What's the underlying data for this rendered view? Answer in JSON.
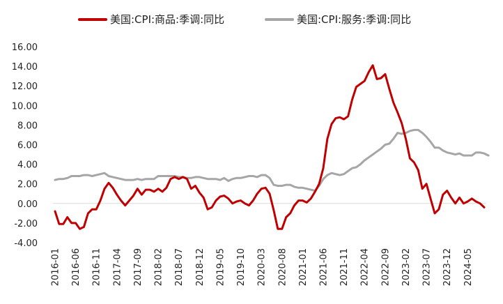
{
  "chart_data": {
    "type": "line",
    "ylim": [
      -4,
      16
    ],
    "yticks": [
      "16.00",
      "14.00",
      "12.00",
      "10.00",
      "8.00",
      "6.00",
      "4.00",
      "2.00",
      "0.00",
      "-2.00",
      "-4.00"
    ],
    "x_tick_labels": [
      "2016-01",
      "2016-06",
      "2016-11",
      "2017-04",
      "2017-09",
      "2018-02",
      "2018-07",
      "2018-12",
      "2019-05",
      "2019-10",
      "2020-03",
      "2020-08",
      "2021-01",
      "2021-06",
      "2021-11",
      "2022-04",
      "2022-09",
      "2023-02",
      "2023-07",
      "2023-12",
      "2024-05"
    ],
    "legend_position": "top",
    "grid": false,
    "series": [
      {
        "name": "美国:CPI:商品:季调:同比",
        "color": "#c00000",
        "values": [
          -0.8,
          -2.1,
          -2.1,
          -1.4,
          -2.0,
          -2.0,
          -2.6,
          -2.4,
          -1.0,
          -0.6,
          -0.6,
          0.3,
          1.5,
          2.1,
          1.6,
          0.9,
          0.3,
          -0.2,
          0.3,
          0.8,
          1.5,
          0.9,
          1.4,
          1.4,
          1.2,
          1.5,
          1.2,
          1.6,
          2.5,
          2.7,
          2.5,
          2.7,
          2.5,
          1.5,
          1.8,
          1.1,
          0.6,
          -0.6,
          -0.4,
          0.3,
          0.7,
          0.8,
          0.5,
          0.0,
          0.2,
          0.3,
          0.0,
          -0.2,
          0.3,
          1.0,
          1.5,
          1.6,
          1.0,
          -0.7,
          -2.6,
          -2.6,
          -1.4,
          -1.0,
          -0.2,
          0.3,
          0.3,
          0.1,
          0.5,
          1.2,
          2.0,
          3.6,
          6.6,
          8.1,
          8.7,
          8.8,
          8.6,
          8.9,
          10.6,
          11.9,
          12.2,
          12.5,
          13.4,
          14.1,
          12.7,
          12.8,
          13.2,
          11.7,
          10.3,
          9.3,
          8.2,
          6.6,
          4.6,
          4.2,
          3.4,
          1.5,
          2.0,
          0.5,
          -1.0,
          -0.6,
          0.9,
          1.3,
          0.6,
          0.0,
          0.6,
          0.0,
          0.2,
          0.5,
          0.2,
          0.0,
          -0.4
        ]
      },
      {
        "name": "美国:CPI:服务:季调:同比",
        "color": "#a6a6a6",
        "values": [
          2.4,
          2.5,
          2.5,
          2.6,
          2.8,
          2.8,
          2.8,
          2.9,
          2.9,
          2.8,
          2.9,
          3.0,
          3.1,
          2.8,
          2.7,
          2.6,
          2.5,
          2.4,
          2.4,
          2.4,
          2.5,
          2.4,
          2.5,
          2.5,
          2.5,
          2.8,
          2.8,
          2.8,
          2.8,
          2.8,
          2.7,
          2.7,
          2.6,
          2.6,
          2.7,
          2.7,
          2.6,
          2.5,
          2.5,
          2.5,
          2.4,
          2.6,
          2.3,
          2.5,
          2.6,
          2.6,
          2.7,
          2.8,
          2.8,
          2.7,
          2.9,
          2.9,
          2.6,
          1.9,
          1.8,
          1.8,
          1.9,
          1.9,
          1.7,
          1.6,
          1.6,
          1.5,
          1.4,
          1.3,
          1.8,
          2.5,
          2.9,
          3.1,
          3.0,
          2.9,
          3.0,
          3.3,
          3.6,
          3.7,
          4.0,
          4.4,
          4.7,
          5.0,
          5.3,
          5.6,
          6.0,
          6.1,
          6.6,
          7.2,
          7.1,
          7.2,
          7.4,
          7.5,
          7.5,
          7.2,
          6.8,
          6.3,
          5.7,
          5.7,
          5.4,
          5.2,
          5.1,
          5.0,
          5.1,
          4.9,
          4.9,
          4.9,
          5.2,
          5.2,
          5.1,
          4.9
        ]
      }
    ]
  }
}
